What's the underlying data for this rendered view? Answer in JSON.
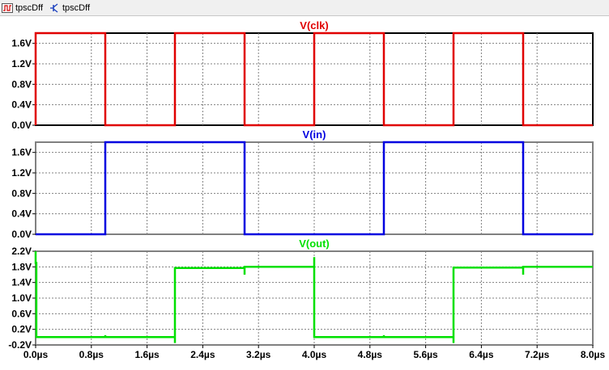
{
  "tabs": [
    {
      "label": "tpscDff",
      "icon": "waveform-icon",
      "active": true
    },
    {
      "label": "tpscDff",
      "icon": "schematic-icon",
      "active": false
    }
  ],
  "x_ticks": [
    "0.0µs",
    "0.8µs",
    "1.6µs",
    "2.4µs",
    "3.2µs",
    "4.0µs",
    "4.8µs",
    "5.6µs",
    "6.4µs",
    "7.2µs",
    "8.0µs"
  ],
  "colors": {
    "clk": "#e00000",
    "in": "#0000e0",
    "out": "#00e000",
    "active_frame": "#000000",
    "frame": "#808080",
    "grid": "#808080"
  },
  "chart_data": [
    {
      "type": "line",
      "title": "V(clk)",
      "color": "#e00000",
      "xlim": [
        0,
        8
      ],
      "ylim": [
        0,
        1.8
      ],
      "y_ticks": [
        "0.0V",
        "0.4V",
        "0.8V",
        "1.2V",
        "1.6V"
      ],
      "y_tick_values": [
        0,
        0.4,
        0.8,
        1.2,
        1.6
      ],
      "x": [
        0,
        0,
        1,
        1,
        2,
        2,
        3,
        3,
        4,
        4,
        5,
        5,
        6,
        6,
        7,
        7,
        8
      ],
      "y": [
        0,
        1.8,
        1.8,
        0,
        0,
        1.8,
        1.8,
        0,
        0,
        1.8,
        1.8,
        0,
        0,
        1.8,
        1.8,
        0,
        0
      ]
    },
    {
      "type": "line",
      "title": "V(in)",
      "color": "#0000e0",
      "xlim": [
        0,
        8
      ],
      "ylim": [
        0,
        1.8
      ],
      "y_ticks": [
        "0.0V",
        "0.4V",
        "0.8V",
        "1.2V",
        "1.6V"
      ],
      "y_tick_values": [
        0,
        0.4,
        0.8,
        1.2,
        1.6
      ],
      "x": [
        0,
        1,
        1,
        3,
        3,
        5,
        5,
        7,
        7,
        8
      ],
      "y": [
        0,
        0,
        1.8,
        1.8,
        0,
        0,
        1.8,
        1.8,
        0,
        0
      ]
    },
    {
      "type": "line",
      "title": "V(out)",
      "color": "#00e000",
      "xlim": [
        0,
        8
      ],
      "ylim": [
        -0.2,
        2.2
      ],
      "y_ticks": [
        "-0.2V",
        "0.2V",
        "0.6V",
        "1.0V",
        "1.4V",
        "1.8V",
        "2.2V"
      ],
      "y_tick_values": [
        -0.2,
        0.2,
        0.6,
        1.0,
        1.4,
        1.8,
        2.2
      ],
      "x": [
        0,
        0,
        0.01,
        0.01,
        1,
        1,
        1,
        2,
        2,
        2,
        2.02,
        3,
        3,
        3,
        4,
        4,
        4,
        4.02,
        5,
        5,
        5,
        6,
        6,
        6,
        6.02,
        7,
        7,
        7,
        8
      ],
      "y": [
        2.2,
        1.9,
        1.9,
        0.0,
        0.0,
        0.05,
        0.0,
        0.0,
        -0.15,
        1.77,
        1.77,
        1.77,
        1.6,
        1.8,
        1.8,
        2.05,
        0.0,
        0.0,
        0.0,
        0.05,
        0.0,
        0.0,
        -0.15,
        1.78,
        1.78,
        1.78,
        1.6,
        1.8,
        1.8
      ]
    }
  ]
}
